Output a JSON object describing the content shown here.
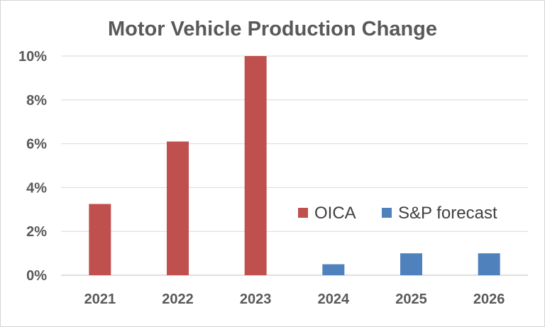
{
  "chart_data": {
    "type": "bar",
    "title": "Motor Vehicle Production Change",
    "xlabel": "",
    "ylabel": "",
    "categories": [
      "2021",
      "2022",
      "2023",
      "2024",
      "2025",
      "2026"
    ],
    "series": [
      {
        "name": "OICA",
        "color": "#c0504d",
        "values": [
          3.25,
          6.1,
          10.0,
          null,
          null,
          null
        ]
      },
      {
        "name": "S&P forecast",
        "color": "#4f81bd",
        "values": [
          null,
          null,
          null,
          0.5,
          1.0,
          1.0
        ]
      }
    ],
    "ylim": [
      0,
      10
    ],
    "y_ticks": [
      "0%",
      "2%",
      "4%",
      "6%",
      "8%",
      "10%"
    ],
    "grid": true,
    "legend_position": "right-middle"
  }
}
